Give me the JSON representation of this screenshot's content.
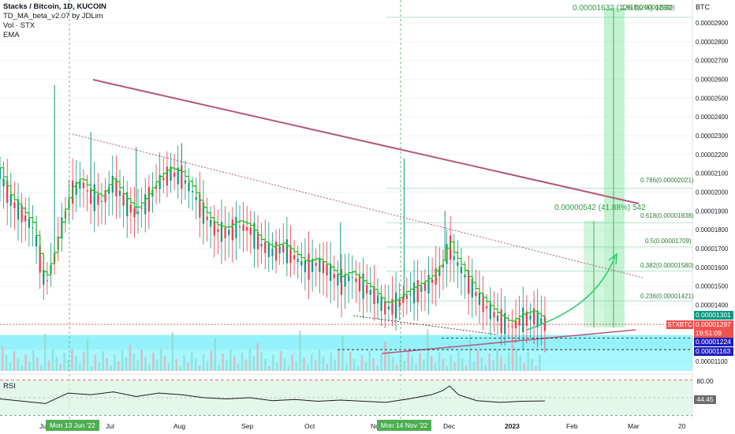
{
  "legend": {
    "title": "Stacks / Bitcoin, 1D, KUCOIN",
    "indicator1": "TD_MA_beta_v2.07 by JDLim",
    "indicator2": "Vol · STX",
    "indicator3": "EMA"
  },
  "rsi_label": "RSI",
  "axis_unit": "BTC",
  "price_tags": {
    "tag1": "0.00001301",
    "tag2": "0.00001297",
    "tag3": "19:51:09",
    "tag4": "0.00001224",
    "tag5": "0.00001163"
  },
  "symbol_tag": "STXBTC",
  "date_tags": {
    "first": "Mon 13 Jun '22",
    "second": "Mon 14 Nov '22"
  },
  "rsi_tags": {
    "upper": "80.00",
    "value": "44.45"
  },
  "fib_labels": {
    "f1": "1.618(0.00002930)",
    "f0786": "0.786(0.00002021)",
    "f0618": "0.618(0.00001838)",
    "f05": "0.5(0.00001709)",
    "f0382": "0.382(0.00001580)",
    "f0236": "0.236(0.00001421)"
  },
  "measure_labels": {
    "top": "0.00001632 (126.00%) 1632",
    "mid": "0.00000542 (41.88%) 542"
  },
  "colors": {
    "up": "#089981",
    "down": "#f23645",
    "ma_line": "#22bb22",
    "resistance": "#b5577a",
    "zone": "#40eeff",
    "measure": "#4caf50"
  },
  "chart_data": {
    "type": "candlestick",
    "title": "Stacks / Bitcoin, 1D, KUCOIN",
    "y_unit": "BTC",
    "y_ticks": [
      "0.00001100",
      "0.00001200",
      "0.00001300",
      "0.00001400",
      "0.00001500",
      "0.00001600",
      "0.00001700",
      "0.00001800",
      "0.00001900",
      "0.00002000",
      "0.00002100",
      "0.00002200",
      "0.00002300",
      "0.00002400",
      "0.00002500",
      "0.00002600",
      "0.00002700",
      "0.00002800",
      "0.00002900"
    ],
    "x_ticks": [
      "Ju",
      "Jul",
      "Aug",
      "Sep",
      "Oct",
      "Nov",
      "Dec",
      "2023",
      "Feb",
      "Mar",
      "20"
    ],
    "x_domain_days": [
      0,
      305
    ],
    "y_domain": [
      1.05e-05,
      2.98e-05
    ],
    "series_close": [
      [
        0,
        2.1e-05
      ],
      [
        5,
        1.95e-05
      ],
      [
        10,
        1.88e-05
      ],
      [
        15,
        1.8e-05
      ],
      [
        18,
        1.62e-05
      ],
      [
        20,
        1.5e-05
      ],
      [
        24,
        1.65e-05
      ],
      [
        28,
        1.85e-05
      ],
      [
        32,
        2e-05
      ],
      [
        36,
        2.05e-05
      ],
      [
        40,
        1.98e-05
      ],
      [
        45,
        1.95e-05
      ],
      [
        50,
        2.05e-05
      ],
      [
        55,
        1.95e-05
      ],
      [
        60,
        1.88e-05
      ],
      [
        65,
        1.95e-05
      ],
      [
        70,
        2.05e-05
      ],
      [
        75,
        2.1e-05
      ],
      [
        80,
        2.08e-05
      ],
      [
        85,
        2e-05
      ],
      [
        90,
        1.88e-05
      ],
      [
        95,
        1.8e-05
      ],
      [
        100,
        1.78e-05
      ],
      [
        105,
        1.82e-05
      ],
      [
        110,
        1.8e-05
      ],
      [
        115,
        1.72e-05
      ],
      [
        120,
        1.68e-05
      ],
      [
        125,
        1.7e-05
      ],
      [
        130,
        1.65e-05
      ],
      [
        135,
        1.6e-05
      ],
      [
        140,
        1.62e-05
      ],
      [
        145,
        1.58e-05
      ],
      [
        150,
        1.52e-05
      ],
      [
        155,
        1.55e-05
      ],
      [
        160,
        1.5e-05
      ],
      [
        165,
        1.45e-05
      ],
      [
        170,
        1.38e-05
      ],
      [
        175,
        1.4e-05
      ],
      [
        180,
        1.45e-05
      ],
      [
        185,
        1.48e-05
      ],
      [
        190,
        1.52e-05
      ],
      [
        195,
        1.6e-05
      ],
      [
        198,
        1.72e-05
      ],
      [
        200,
        1.65e-05
      ],
      [
        205,
        1.55e-05
      ],
      [
        210,
        1.45e-05
      ],
      [
        215,
        1.38e-05
      ],
      [
        220,
        1.32e-05
      ],
      [
        225,
        1.28e-05
      ],
      [
        230,
        1.32e-05
      ],
      [
        235,
        1.34e-05
      ],
      [
        240,
        1.3e-05
      ]
    ],
    "rsi": [
      [
        0,
        48
      ],
      [
        20,
        40
      ],
      [
        30,
        58
      ],
      [
        40,
        55
      ],
      [
        50,
        60
      ],
      [
        60,
        52
      ],
      [
        70,
        58
      ],
      [
        80,
        55
      ],
      [
        90,
        50
      ],
      [
        100,
        48
      ],
      [
        110,
        50
      ],
      [
        120,
        45
      ],
      [
        130,
        47
      ],
      [
        140,
        44
      ],
      [
        150,
        46
      ],
      [
        160,
        44
      ],
      [
        170,
        42
      ],
      [
        180,
        48
      ],
      [
        190,
        55
      ],
      [
        195,
        62
      ],
      [
        198,
        70
      ],
      [
        202,
        55
      ],
      [
        210,
        45
      ],
      [
        220,
        42
      ],
      [
        230,
        44
      ],
      [
        240,
        44.45
      ]
    ],
    "fib_levels": [
      {
        "ratio": "1.618",
        "value": 2.93e-05
      },
      {
        "ratio": "0.786",
        "value": 2.021e-05
      },
      {
        "ratio": "0.618",
        "value": 1.838e-05
      },
      {
        "ratio": "0.5",
        "value": 1.709e-05
      },
      {
        "ratio": "0.382",
        "value": 1.58e-05
      },
      {
        "ratio": "0.236",
        "value": 1.421e-05
      }
    ],
    "current_price": 1.297e-05,
    "support_zone": [
      1.163e-05,
      1.224e-05
    ],
    "rsi_bands": [
      80,
      50,
      20
    ]
  }
}
